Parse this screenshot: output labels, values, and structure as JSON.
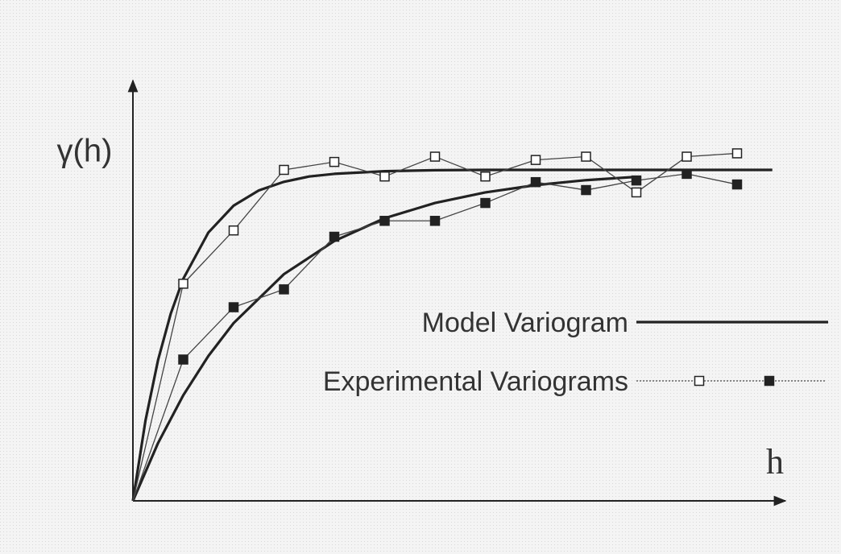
{
  "chart_data": {
    "type": "line",
    "y_label": "γ(h)",
    "x_label": "h",
    "xlim": [
      0,
      12.96
    ],
    "ylim": [
      0,
      1.27
    ],
    "color": "#222222",
    "model": {
      "name": "Model Variogram",
      "curves": [
        {
          "x": [
            0,
            0.25,
            0.5,
            0.75,
            1,
            1.5,
            2,
            2.5,
            3,
            3.5,
            4,
            5,
            6,
            7,
            8,
            9,
            10,
            11,
            12,
            12.7
          ],
          "values": [
            0,
            0.243,
            0.426,
            0.565,
            0.671,
            0.811,
            0.892,
            0.938,
            0.964,
            0.98,
            0.988,
            0.996,
            0.999,
            1,
            1,
            1,
            1,
            1,
            1,
            1
          ]
        },
        {
          "x": [
            0,
            0.5,
            1,
            1.5,
            2,
            3,
            4,
            5,
            6,
            7,
            8,
            9,
            10
          ],
          "values": [
            0,
            0.175,
            0.319,
            0.438,
            0.537,
            0.685,
            0.785,
            0.854,
            0.9,
            0.932,
            0.954,
            0.969,
            0.979
          ]
        }
      ]
    },
    "experimental": {
      "name": "Experimental Variograms",
      "series": [
        {
          "marker": "open",
          "x": [
            0,
            1,
            2,
            3,
            4,
            5,
            6,
            7,
            8,
            9,
            10,
            11,
            12
          ],
          "values": [
            0,
            0.656,
            0.817,
            1.0,
            1.024,
            0.98,
            1.04,
            0.98,
            1.03,
            1.04,
            0.932,
            1.04,
            1.05
          ]
        },
        {
          "marker": "filled",
          "x": [
            0,
            1,
            2,
            3,
            4,
            5,
            6,
            7,
            8,
            9,
            10,
            11,
            12
          ],
          "values": [
            0,
            0.427,
            0.585,
            0.639,
            0.798,
            0.846,
            0.846,
            0.9,
            0.963,
            0.939,
            0.968,
            0.988,
            0.956
          ]
        }
      ]
    }
  }
}
